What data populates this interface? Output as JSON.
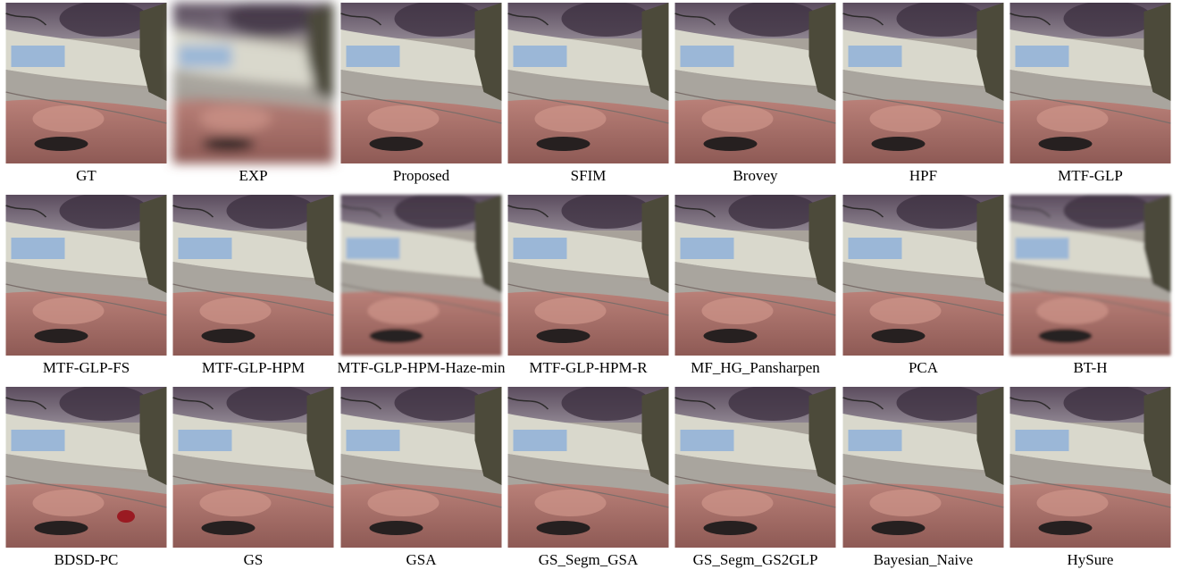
{
  "figure": {
    "panels": [
      {
        "label": "GT"
      },
      {
        "label": "EXP"
      },
      {
        "label": "Proposed"
      },
      {
        "label": "SFIM"
      },
      {
        "label": "Brovey"
      },
      {
        "label": "HPF"
      },
      {
        "label": "MTF-GLP"
      },
      {
        "label": "MTF-GLP-FS"
      },
      {
        "label": "MTF-GLP-HPM"
      },
      {
        "label": "MTF-GLP-HPM-Haze-min"
      },
      {
        "label": "MTF-GLP-HPM-R"
      },
      {
        "label": "MF_HG_Pansharpen"
      },
      {
        "label": "PCA"
      },
      {
        "label": "BT-H"
      },
      {
        "label": "BDSD-PC"
      },
      {
        "label": "GS"
      },
      {
        "label": "GSA"
      },
      {
        "label": "GS_Segm_GSA"
      },
      {
        "label": "GS_Segm_GS2GLP"
      },
      {
        "label": "Bayesian_Naive"
      },
      {
        "label": "HySure"
      }
    ]
  }
}
